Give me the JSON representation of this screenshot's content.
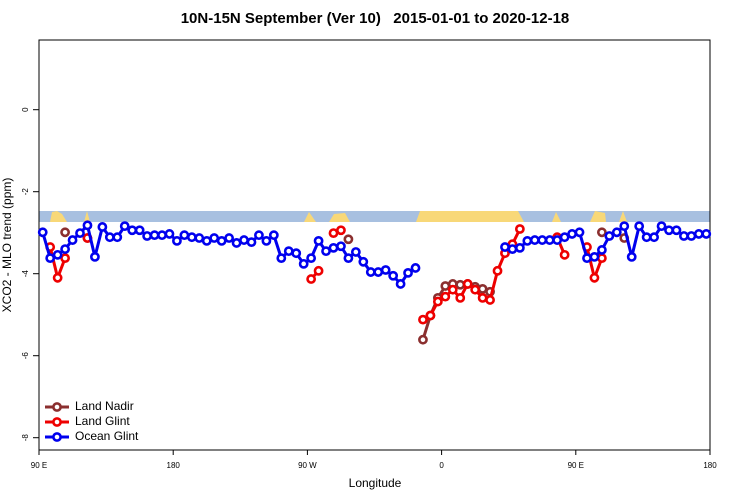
{
  "chart_data": {
    "type": "line",
    "title": "10N-15N September (Ver 10)   2015-01-01 to 2020-12-18",
    "x_label": "Longitude",
    "y_label": "XCO2 - MLO trend (ppm)",
    "x": [
      92.5,
      97.5,
      102.5,
      107.5,
      112.5,
      117.5,
      122.5,
      127.5,
      132.5,
      137.5,
      142.5,
      147.5,
      152.5,
      157.5,
      162.5,
      167.5,
      172.5,
      177.5,
      182.5,
      187.5,
      192.5,
      197.5,
      202.5,
      207.5,
      212.5,
      217.5,
      222.5,
      227.5,
      232.5,
      237.5,
      242.5,
      247.5,
      252.5,
      257.5,
      262.5,
      267.5,
      272.5,
      277.5,
      282.5,
      287.5,
      292.5,
      297.5,
      302.5,
      307.5,
      312.5,
      317.5,
      322.5,
      327.5,
      332.5,
      337.5,
      342.5,
      347.5,
      352.5,
      357.5,
      362.5,
      367.5,
      372.5,
      377.5,
      382.5,
      387.5,
      392.5,
      397.5,
      402.5,
      407.5,
      412.5,
      417.5,
      422.5,
      427.5,
      432.5,
      437.5,
      442.5,
      447.5,
      452.5,
      457.5,
      462.5,
      467.5,
      472.5,
      477.5,
      482.5,
      487.5,
      492.5,
      497.5,
      502.5,
      507.5,
      512.5,
      517.5,
      522.5,
      527.5,
      532.5,
      537.5
    ],
    "series": [
      {
        "name": "Land Nadir",
        "color": "#8b2f2f",
        "values": [
          null,
          null,
          null,
          -2.99,
          null,
          null,
          -3.13,
          null,
          null,
          null,
          null,
          null,
          null,
          null,
          null,
          null,
          null,
          null,
          null,
          null,
          null,
          null,
          null,
          null,
          null,
          null,
          null,
          null,
          null,
          null,
          null,
          null,
          null,
          null,
          null,
          null,
          null,
          null,
          null,
          null,
          null,
          -3.16,
          null,
          null,
          null,
          null,
          null,
          null,
          null,
          null,
          null,
          -5.61,
          -5.02,
          -4.59,
          -4.3,
          -4.25,
          -4.27,
          -4.25,
          -4.32,
          -4.37,
          -4.44,
          null,
          null,
          null,
          null,
          null,
          null,
          null,
          null,
          null,
          null,
          null,
          null,
          null,
          null,
          -2.99,
          null,
          null,
          -3.13,
          null,
          null,
          null,
          null,
          null,
          null,
          null,
          null,
          null,
          null,
          null
        ]
      },
      {
        "name": "Land Glint",
        "color": "#ee0000",
        "values": [
          null,
          -3.35,
          -4.1,
          -3.62,
          null,
          null,
          -3.13,
          null,
          null,
          null,
          null,
          null,
          null,
          null,
          null,
          null,
          null,
          null,
          null,
          null,
          null,
          null,
          null,
          null,
          null,
          null,
          null,
          null,
          null,
          null,
          null,
          null,
          null,
          null,
          null,
          null,
          -4.13,
          -3.93,
          null,
          -3.01,
          -2.94,
          null,
          null,
          null,
          null,
          null,
          null,
          null,
          null,
          null,
          null,
          -5.12,
          -5.02,
          -4.68,
          -4.56,
          -4.39,
          -4.59,
          -4.25,
          -4.39,
          -4.59,
          -4.64,
          -3.93,
          -3.5,
          -3.28,
          -2.91,
          null,
          null,
          null,
          null,
          -3.11,
          -3.54,
          null,
          null,
          -3.35,
          -4.1,
          -3.62,
          null,
          null,
          null,
          null,
          null,
          null,
          null,
          null,
          null,
          null,
          null,
          null,
          null,
          null
        ]
      },
      {
        "name": "Ocean Glint",
        "color": "#0000ee",
        "values": [
          -2.99,
          -3.62,
          -3.54,
          -3.4,
          -3.18,
          -3.01,
          -2.82,
          -3.59,
          -2.86,
          -3.11,
          -3.11,
          -2.84,
          -2.94,
          -2.94,
          -3.08,
          -3.06,
          -3.06,
          -3.03,
          -3.2,
          -3.06,
          -3.11,
          -3.13,
          -3.2,
          -3.13,
          -3.2,
          -3.13,
          -3.25,
          -3.18,
          -3.23,
          -3.06,
          -3.2,
          -3.06,
          -3.62,
          -3.45,
          -3.5,
          -3.76,
          -3.62,
          -3.2,
          -3.45,
          -3.37,
          -3.33,
          -3.62,
          -3.47,
          -3.71,
          -3.96,
          -3.96,
          -3.91,
          -4.05,
          -4.25,
          -3.98,
          -3.86,
          null,
          null,
          null,
          null,
          null,
          null,
          null,
          null,
          null,
          null,
          null,
          -3.35,
          -3.4,
          -3.37,
          -3.2,
          -3.18,
          -3.18,
          -3.18,
          -3.18,
          -3.11,
          -3.03,
          -2.99,
          -3.62,
          -3.59,
          -3.42,
          -3.08,
          -2.99,
          -2.84,
          -3.59,
          -2.84,
          -3.11,
          -3.11,
          -2.84,
          -2.94,
          -2.94,
          -3.08,
          -3.08,
          -3.03,
          -3.03
        ]
      }
    ],
    "xlim": [
      90,
      540
    ],
    "xticks": [
      {
        "value": 90,
        "label": "90 E"
      },
      180,
      {
        "value": 270,
        "label": "90 W"
      },
      {
        "value": 360,
        "label": "0"
      },
      {
        "value": 450,
        "label": "90 E"
      },
      {
        "value": 540,
        "label": "180"
      }
    ],
    "ylim": [
      -8.3,
      1.7
    ],
    "yticks": [
      0,
      -2,
      -4,
      -6,
      -8
    ],
    "legend": "bottom-left"
  }
}
